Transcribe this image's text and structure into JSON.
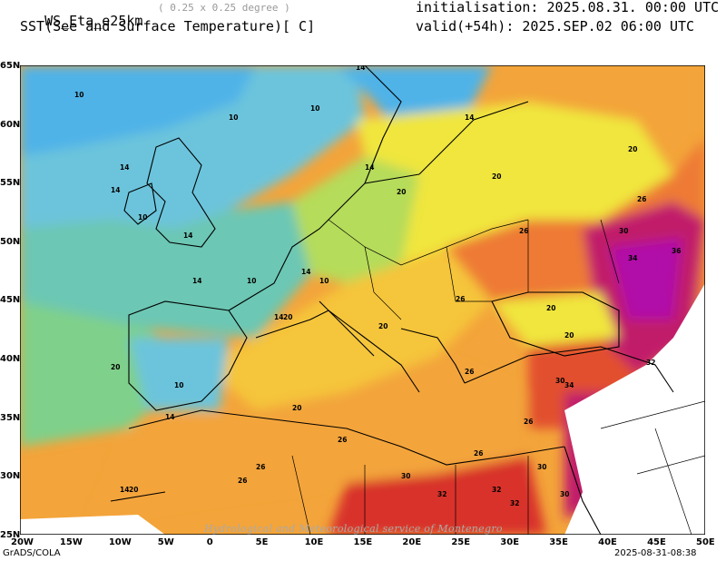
{
  "header": {
    "model": "WS_Eta_e25km",
    "resolution": "( 0.25 x 0.25 degree )",
    "variable": "SST(See and Surface Temperature)[ C]",
    "init": "initialisation: 2025.08.31. 00:00 UTC",
    "valid": "valid(+54h): 2025.SEP.02 06:00 UTC"
  },
  "axes": {
    "lon_labels": [
      "20W",
      "15W",
      "10W",
      "5W",
      "0",
      "5E",
      "10E",
      "15E",
      "20E",
      "25E",
      "30E",
      "35E",
      "40E",
      "45E",
      "50E"
    ],
    "lat_labels": [
      "65N",
      "60N",
      "55N",
      "50N",
      "45N",
      "40N",
      "35N",
      "30N",
      "25N"
    ]
  },
  "contour_labels": [
    "10",
    "14",
    "20",
    "26",
    "30",
    "32",
    "34",
    "36"
  ],
  "colors": {
    "t10": "#4fb3e8",
    "t12": "#6cc4dc",
    "t14": "#6cc7b4",
    "t16": "#7fd08a",
    "t18": "#b5dc5a",
    "t20": "#f0e63c",
    "t22": "#f5c53a",
    "t24": "#f3a43a",
    "t26": "#ee7a36",
    "t28": "#e2502e",
    "t30": "#d8312a",
    "t32": "#c11f6a",
    "t34": "#b10fa8",
    "t36": "#9c4fd4",
    "land_nodata": "#ffffff"
  },
  "footer": {
    "left": "GrADS/COLA",
    "right": "2025-08-31-08:38",
    "watermark": "Hydrological and Meteorological service of Montenegro"
  }
}
